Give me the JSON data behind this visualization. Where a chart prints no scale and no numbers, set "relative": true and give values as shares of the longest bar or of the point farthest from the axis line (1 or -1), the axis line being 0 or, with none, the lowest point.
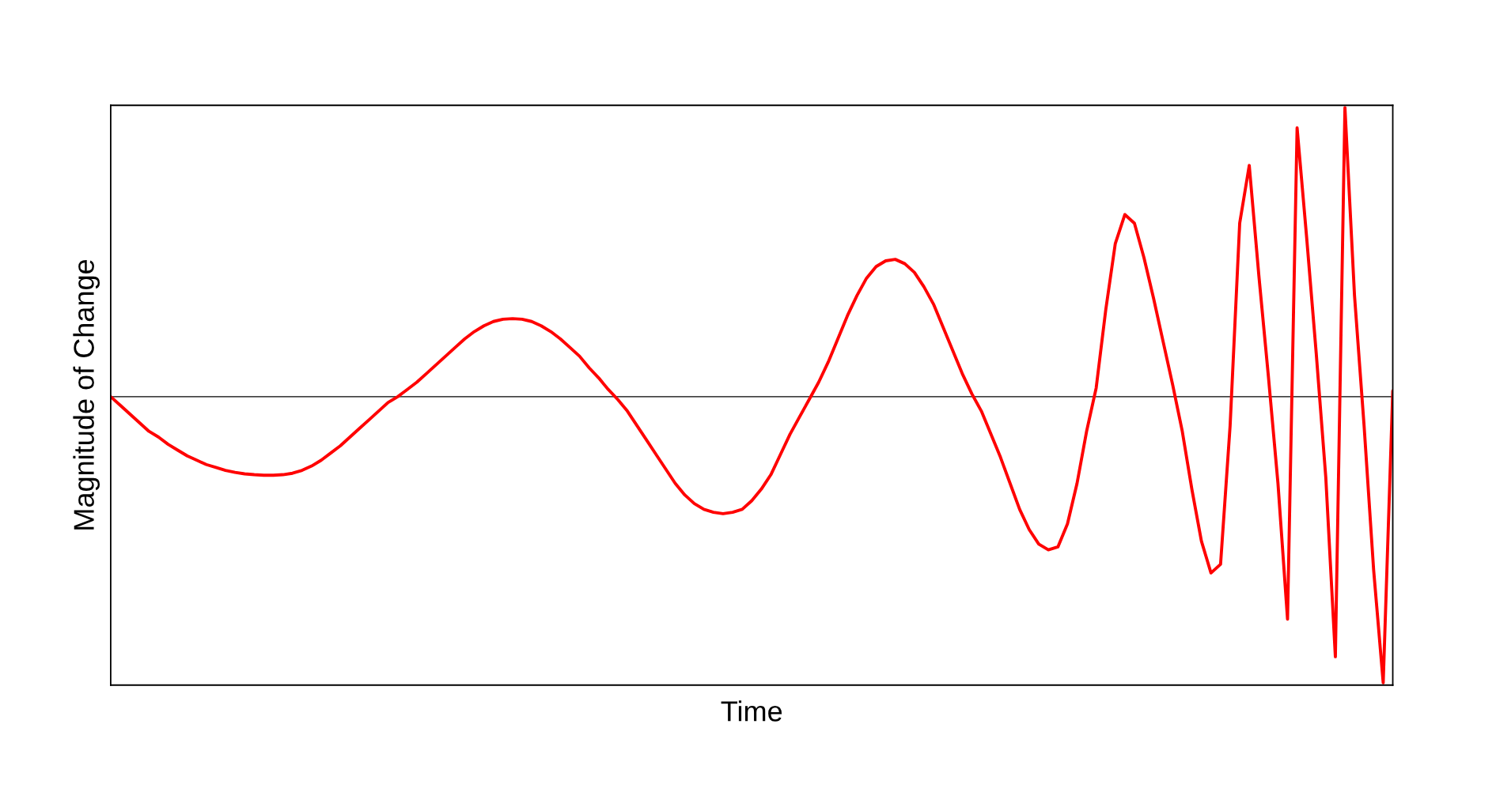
{
  "chart_data": {
    "type": "line",
    "xlabel": "Time",
    "ylabel": "Magnitude of Change",
    "relative": true,
    "marker": "none",
    "line_style": "solid",
    "categories": [
      null,
      null,
      null,
      null,
      null,
      null,
      null,
      null,
      null,
      null,
      null,
      null,
      null,
      null,
      null,
      null,
      null,
      null,
      null,
      null,
      null,
      null,
      null,
      null,
      null,
      null,
      null,
      null,
      null,
      null,
      null,
      null,
      null,
      null,
      null,
      null,
      null,
      null,
      null,
      null,
      null,
      null,
      null,
      null,
      null,
      null,
      null,
      null,
      null,
      null,
      null,
      null,
      null,
      null,
      null,
      null,
      null,
      null,
      null,
      null,
      null,
      null,
      null,
      null,
      null,
      null,
      null,
      null,
      null,
      null,
      null,
      null,
      null,
      null,
      null,
      null,
      null,
      null,
      null,
      null,
      null,
      null,
      null,
      null,
      null,
      null,
      null,
      null,
      null,
      null,
      null,
      null,
      null,
      null,
      null,
      null,
      null,
      null,
      null,
      null,
      null,
      null,
      null,
      null,
      null,
      null,
      null,
      null,
      null,
      null,
      null,
      null,
      null,
      null,
      null,
      null,
      null,
      null,
      null,
      null,
      null,
      null,
      null,
      null,
      null,
      null,
      null,
      null,
      null,
      null,
      null,
      null,
      null,
      null,
      null
    ],
    "series": [
      {
        "color": "#ff0000",
        "values": [
          0.0,
          -0.03,
          -0.06,
          -0.09,
          -0.12,
          -0.14,
          -0.165,
          -0.185,
          -0.205,
          -0.22,
          -0.235,
          -0.245,
          -0.255,
          -0.262,
          -0.267,
          -0.27,
          -0.272,
          -0.272,
          -0.27,
          -0.265,
          -0.255,
          -0.24,
          -0.22,
          -0.195,
          -0.17,
          -0.14,
          -0.11,
          -0.08,
          -0.05,
          -0.02,
          0.0,
          0.025,
          0.05,
          0.08,
          0.11,
          0.14,
          0.17,
          0.2,
          0.225,
          0.245,
          0.26,
          0.268,
          0.27,
          0.268,
          0.26,
          0.245,
          0.225,
          0.2,
          0.17,
          0.14,
          0.1,
          0.065,
          0.025,
          -0.01,
          -0.05,
          -0.1,
          -0.15,
          -0.2,
          -0.25,
          -0.3,
          -0.34,
          -0.37,
          -0.39,
          -0.4,
          -0.405,
          -0.4,
          -0.39,
          -0.36,
          -0.32,
          -0.27,
          -0.2,
          -0.13,
          -0.07,
          -0.01,
          0.05,
          0.12,
          0.2,
          0.28,
          0.35,
          0.41,
          0.45,
          0.47,
          0.475,
          0.46,
          0.43,
          0.38,
          0.32,
          0.24,
          0.16,
          0.08,
          0.01,
          -0.05,
          -0.13,
          -0.21,
          -0.3,
          -0.39,
          -0.46,
          -0.51,
          -0.53,
          -0.52,
          -0.44,
          -0.3,
          -0.12,
          0.03,
          0.3,
          0.53,
          0.63,
          0.6,
          0.48,
          0.34,
          0.19,
          0.04,
          -0.12,
          -0.32,
          -0.5,
          -0.61,
          -0.58,
          -0.1,
          0.6,
          0.8,
          0.42,
          0.07,
          -0.3,
          -0.77,
          0.93,
          0.55,
          0.15,
          -0.28,
          -0.9,
          1.0,
          0.35,
          -0.1,
          -0.6,
          -0.99,
          0.02
        ]
      }
    ]
  }
}
